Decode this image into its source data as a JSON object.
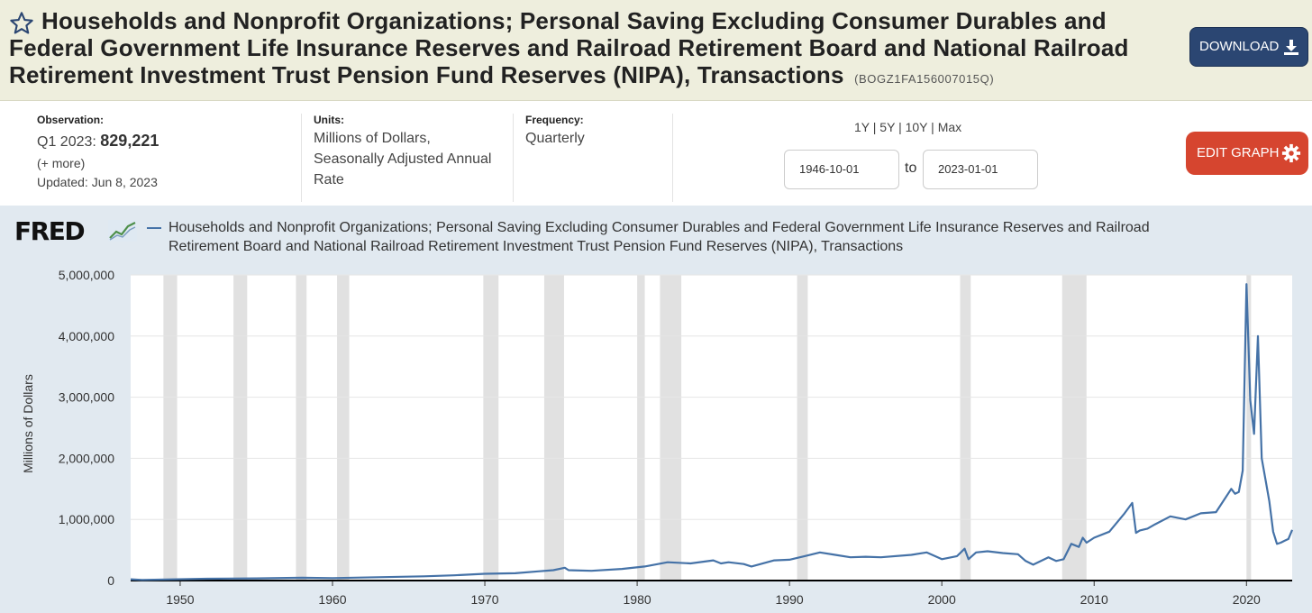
{
  "header": {
    "title": "Households and Nonprofit Organizations; Personal Saving Excluding Consumer Durables and Federal Government Life Insurance Reserves and Railroad Retirement Board and National Railroad Retirement Investment Trust Pension Fund Reserves (NIPA), Transactions",
    "series_id": "(BOGZ1FA156007015Q)",
    "download_label": "DOWNLOAD",
    "star_icon": "star-outline-icon",
    "download_icon": "download-icon"
  },
  "meta": {
    "observation_label": "Observation:",
    "observation_period": "Q1 2023:",
    "observation_value": "829,221",
    "more_link": "(+ more)",
    "updated": "Updated: Jun 8, 2023",
    "units_label": "Units:",
    "units_line1": "Millions of Dollars,",
    "units_line2": "Seasonally Adjusted Annual",
    "units_line3": "Rate",
    "frequency_label": "Frequency:",
    "frequency_value": "Quarterly",
    "range_1y": "1Y",
    "range_5y": "5Y",
    "range_10y": "10Y",
    "range_max": "Max",
    "sep": "|",
    "start_date": "1946-10-01",
    "to_label": "to",
    "end_date": "2023-01-01",
    "edit_graph_label": "EDIT GRAPH",
    "gear_icon": "gear-icon"
  },
  "logo": {
    "text": "FRED",
    "mark_icon": "fred-chart-icon"
  },
  "colors": {
    "series_line": "#4572a7",
    "recession_band": "#e1e1e1",
    "plot_bg": "#ffffff",
    "chart_band_bg": "#e1e9f0",
    "header_bg": "#eeeedd",
    "download_bg": "#2b4672",
    "edit_bg": "#d6452f"
  },
  "chart_data": {
    "type": "line",
    "title": "",
    "ylabel": "Millions of Dollars",
    "xlabel": "",
    "xlim": [
      1946.75,
      2023.0
    ],
    "ylim": [
      0,
      5000000
    ],
    "x_ticks": [
      1950,
      1960,
      1970,
      1980,
      1990,
      2000,
      2010,
      2020
    ],
    "y_ticks": [
      0,
      1000000,
      2000000,
      3000000,
      4000000,
      5000000
    ],
    "y_tick_labels": [
      "0",
      "1,000,000",
      "2,000,000",
      "3,000,000",
      "4,000,000",
      "5,000,000"
    ],
    "grid": "horizontal",
    "legend": "top",
    "recessions": [
      [
        1948.9,
        1949.8
      ],
      [
        1953.5,
        1954.4
      ],
      [
        1957.6,
        1958.3
      ],
      [
        1960.3,
        1961.1
      ],
      [
        1969.9,
        1970.9
      ],
      [
        1973.9,
        1975.2
      ],
      [
        1980.0,
        1980.5
      ],
      [
        1981.5,
        1982.9
      ],
      [
        1990.5,
        1991.2
      ],
      [
        2001.2,
        2001.9
      ],
      [
        2007.9,
        2009.5
      ],
      [
        2020.0,
        2020.3
      ]
    ],
    "series": [
      {
        "name": "Households and Nonprofit Organizations; Personal Saving Excluding Consumer Durables and Federal Government Life Insurance Reserves and Railroad Retirement Board and National Railroad Retirement Investment Trust Pension Fund Reserves (NIPA), Transactions",
        "x": [
          1946.75,
          1947.5,
          1951.75,
          1955,
          1958,
          1960,
          1963,
          1966,
          1968,
          1970,
          1972,
          1973.5,
          1974.5,
          1975.25,
          1975.5,
          1977,
          1979,
          1980.5,
          1982,
          1983.5,
          1985,
          1985.5,
          1986,
          1987,
          1987.5,
          1989,
          1990,
          1991,
          1992,
          1993,
          1994,
          1995,
          1996,
          1998,
          1999,
          2000,
          2001,
          2001.5,
          2001.75,
          2002.25,
          2003,
          2004,
          2005,
          2005.5,
          2006,
          2007,
          2007.5,
          2008,
          2008.5,
          2009,
          2009.25,
          2009.5,
          2010,
          2011,
          2012,
          2012.5,
          2012.75,
          2013,
          2013.5,
          2014,
          2015,
          2016,
          2017,
          2018,
          2019,
          2019.25,
          2019.5,
          2019.75,
          2020,
          2020.25,
          2020.5,
          2020.75,
          2021,
          2021.25,
          2021.5,
          2021.75,
          2022,
          2022.25,
          2022.5,
          2022.75,
          2023
        ],
        "values": [
          20000,
          10000,
          30000,
          35000,
          45000,
          40000,
          55000,
          70000,
          85000,
          110000,
          120000,
          150000,
          170000,
          210000,
          170000,
          160000,
          190000,
          230000,
          300000,
          280000,
          330000,
          280000,
          300000,
          270000,
          230000,
          330000,
          340000,
          400000,
          460000,
          420000,
          380000,
          390000,
          380000,
          420000,
          460000,
          350000,
          400000,
          520000,
          350000,
          460000,
          480000,
          450000,
          430000,
          320000,
          260000,
          380000,
          320000,
          350000,
          600000,
          550000,
          700000,
          620000,
          700000,
          800000,
          1100000,
          1270000,
          780000,
          820000,
          850000,
          920000,
          1050000,
          1000000,
          1100000,
          1120000,
          1500000,
          1420000,
          1450000,
          1800000,
          4850000,
          2950000,
          2400000,
          4000000,
          2000000,
          1650000,
          1300000,
          800000,
          600000,
          620000,
          650000,
          680000,
          829221
        ]
      }
    ]
  }
}
